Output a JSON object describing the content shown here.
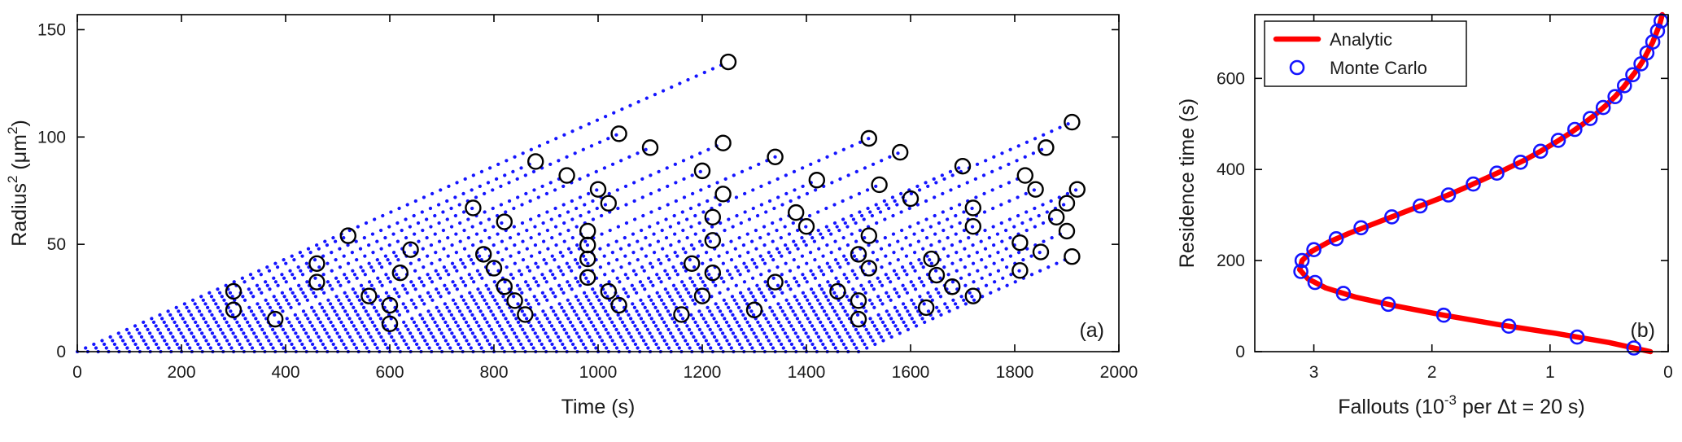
{
  "figure": {
    "background": "#ffffff",
    "axis_color": "#000000",
    "text_color": "#1a1a1a"
  },
  "chart_data": [
    {
      "type": "scatter",
      "panel_label": "(a)",
      "xlabel": "Time (s)",
      "ylabel": "Radius² (μm²)",
      "xlabel_parts": [
        {
          "text": "Time (s)"
        }
      ],
      "ylabel_parts": [
        {
          "text": "Radius"
        },
        {
          "text": "2",
          "sup": true
        },
        {
          "text": " (μm"
        },
        {
          "text": "2",
          "sup": true
        },
        {
          "text": ")"
        }
      ],
      "xlim": [
        0,
        2000
      ],
      "ylim": [
        0,
        157
      ],
      "xticks": [
        0,
        200,
        400,
        600,
        800,
        1000,
        1200,
        1400,
        1600,
        1800,
        2000
      ],
      "yticks": [
        0,
        50,
        100,
        150
      ],
      "line_color": "#1515ff",
      "marker_color": "#000000",
      "growth": {
        "slope": 0.108,
        "trajectories": [
          [
            0,
            1250
          ],
          [
            20,
            500
          ],
          [
            40,
            260
          ],
          [
            60,
            820
          ],
          [
            80,
            380
          ],
          [
            100,
            940
          ],
          [
            120,
            180
          ],
          [
            140,
            620
          ],
          [
            160,
            300
          ],
          [
            180,
            760
          ],
          [
            200,
            440
          ],
          [
            220,
            880
          ],
          [
            240,
            140
          ],
          [
            260,
            560
          ],
          [
            280,
            340
          ],
          [
            300,
            700
          ],
          [
            320,
            240
          ],
          [
            340,
            900
          ],
          [
            360,
            420
          ],
          [
            380,
            640
          ],
          [
            400,
            200
          ],
          [
            420,
            780
          ],
          [
            440,
            360
          ],
          [
            460,
            520
          ],
          [
            480,
            120
          ],
          [
            500,
            840
          ],
          [
            520,
            460
          ],
          [
            540,
            280
          ],
          [
            560,
            680
          ],
          [
            580,
            400
          ],
          [
            600,
            920
          ],
          [
            620,
            220
          ],
          [
            640,
            580
          ],
          [
            660,
            320
          ],
          [
            680,
            740
          ],
          [
            700,
            160
          ],
          [
            720,
            860
          ],
          [
            740,
            480
          ],
          [
            760,
            260
          ],
          [
            780,
            600
          ],
          [
            800,
            380
          ],
          [
            820,
            720
          ],
          [
            840,
            200
          ],
          [
            860,
            540
          ],
          [
            880,
            340
          ],
          [
            900,
            800
          ],
          [
            920,
            990
          ],
          [
            940,
            660
          ],
          [
            960,
            240
          ],
          [
            980,
            880
          ],
          [
            1000,
            160
          ],
          [
            1020,
            500
          ],
          [
            1040,
            300
          ],
          [
            1060,
            760
          ],
          [
            1080,
            420
          ],
          [
            1100,
            620
          ],
          [
            1120,
            180
          ],
          [
            1140,
            700
          ],
          [
            1160,
            360
          ],
          [
            1180,
            540
          ],
          [
            1200,
            260
          ],
          [
            1220,
            700
          ],
          [
            1240,
            400
          ],
          [
            1260,
            640
          ],
          [
            1280,
            220
          ],
          [
            1300,
            580
          ],
          [
            1320,
            330
          ],
          [
            1340,
            470
          ],
          [
            1360,
            140
          ],
          [
            1380,
            520
          ],
          [
            1400,
            280
          ],
          [
            1420,
            430
          ],
          [
            1440,
            190
          ],
          [
            1460,
            350
          ],
          [
            1480,
            240
          ],
          [
            1500,
            410
          ]
        ]
      }
    },
    {
      "type": "line",
      "panel_label": "(b)",
      "xlabel": "Fallouts (10⁻³ per Δt = 20 s)",
      "ylabel": "Residence time (s)",
      "xlabel_parts": [
        {
          "text": "Fallouts (10"
        },
        {
          "text": "-3",
          "sup": true
        },
        {
          "text": " per Δt = 20 s)"
        }
      ],
      "ylabel_parts": [
        {
          "text": "Residence time (s)"
        }
      ],
      "xlim": [
        3.5,
        0
      ],
      "x_reversed": true,
      "ylim": [
        0,
        740
      ],
      "xticks": [
        3,
        2,
        1,
        0
      ],
      "yticks": [
        0,
        200,
        400,
        600
      ],
      "legend": {
        "position": "top-left",
        "entries": [
          "Analytic",
          "Monte Carlo"
        ]
      },
      "series": [
        {
          "name": "Analytic",
          "color": "#ff0000",
          "style": "thick-line",
          "points_t_x": [
            [
              0,
              0.15
            ],
            [
              20,
              0.5
            ],
            [
              40,
              0.95
            ],
            [
              60,
              1.45
            ],
            [
              80,
              1.9
            ],
            [
              100,
              2.3
            ],
            [
              120,
              2.65
            ],
            [
              140,
              2.9
            ],
            [
              160,
              3.05
            ],
            [
              180,
              3.12
            ],
            [
              200,
              3.1
            ],
            [
              220,
              3.02
            ],
            [
              240,
              2.88
            ],
            [
              260,
              2.7
            ],
            [
              280,
              2.5
            ],
            [
              300,
              2.3
            ],
            [
              320,
              2.1
            ],
            [
              340,
              1.9
            ],
            [
              360,
              1.72
            ],
            [
              380,
              1.55
            ],
            [
              400,
              1.38
            ],
            [
              420,
              1.22
            ],
            [
              440,
              1.08
            ],
            [
              460,
              0.95
            ],
            [
              480,
              0.83
            ],
            [
              500,
              0.72
            ],
            [
              520,
              0.62
            ],
            [
              540,
              0.53
            ],
            [
              560,
              0.45
            ],
            [
              580,
              0.38
            ],
            [
              600,
              0.32
            ],
            [
              620,
              0.26
            ],
            [
              640,
              0.21
            ],
            [
              660,
              0.17
            ],
            [
              680,
              0.13
            ],
            [
              700,
              0.1
            ],
            [
              720,
              0.07
            ],
            [
              740,
              0.05
            ]
          ]
        },
        {
          "name": "Monte Carlo",
          "color": "#1515ff",
          "style": "open-circle",
          "points_t_x": [
            [
              8,
              0.29
            ],
            [
              32,
              0.77
            ],
            [
              56,
              1.35
            ],
            [
              80,
              1.9
            ],
            [
              104,
              2.37
            ],
            [
              128,
              2.75
            ],
            [
              152,
              2.99
            ],
            [
              176,
              3.11
            ],
            [
              200,
              3.1
            ],
            [
              224,
              3.0
            ],
            [
              248,
              2.81
            ],
            [
              272,
              2.6
            ],
            [
              296,
              2.34
            ],
            [
              320,
              2.1
            ],
            [
              344,
              1.86
            ],
            [
              368,
              1.65
            ],
            [
              392,
              1.45
            ],
            [
              416,
              1.25
            ],
            [
              440,
              1.08
            ],
            [
              464,
              0.93
            ],
            [
              488,
              0.79
            ],
            [
              512,
              0.66
            ],
            [
              536,
              0.55
            ],
            [
              560,
              0.45
            ],
            [
              584,
              0.37
            ],
            [
              608,
              0.3
            ],
            [
              632,
              0.23
            ],
            [
              656,
              0.18
            ],
            [
              680,
              0.13
            ],
            [
              704,
              0.09
            ],
            [
              726,
              0.06
            ]
          ]
        }
      ]
    }
  ]
}
